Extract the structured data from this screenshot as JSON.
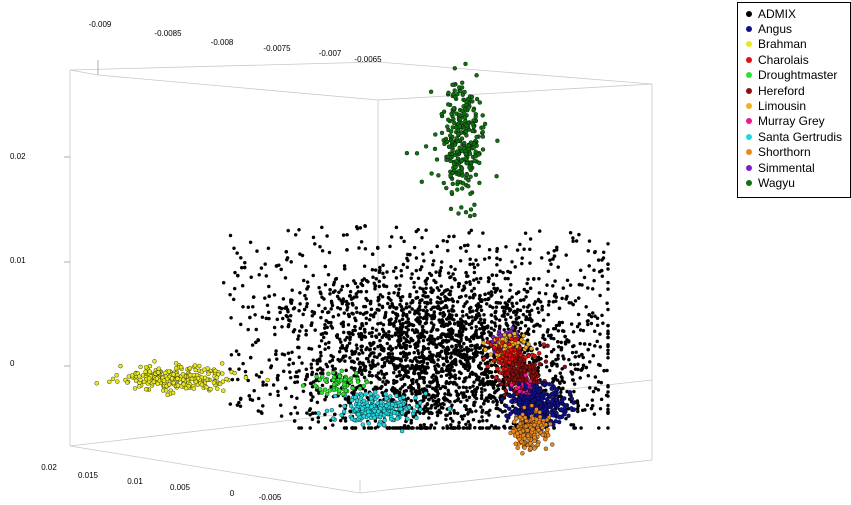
{
  "chart_data": {
    "type": "scatter",
    "title": "",
    "axes": {
      "x_ticks": [
        "-0.009",
        "-0.0085",
        "-0.008",
        "-0.0075",
        "-0.007",
        "-0.0065"
      ],
      "y_ticks": [
        "0.02",
        "0.01",
        "0"
      ],
      "z_ticks": [
        "0.02",
        "0.015",
        "0.01",
        "0.005",
        "0",
        "-0.005"
      ]
    },
    "legend": {
      "placement": "top-right",
      "entries": [
        {
          "name": "ADMIX",
          "color": "#000000"
        },
        {
          "name": "Angus",
          "color": "#10108a"
        },
        {
          "name": "Brahman",
          "color": "#e8e820"
        },
        {
          "name": "Charolais",
          "color": "#e01010"
        },
        {
          "name": "Droughtmaster",
          "color": "#30e030"
        },
        {
          "name": "Hereford",
          "color": "#8a1010"
        },
        {
          "name": "Limousin",
          "color": "#f0b020"
        },
        {
          "name": "Murray Grey",
          "color": "#f01890"
        },
        {
          "name": "Santa Gertrudis",
          "color": "#20d8e0"
        },
        {
          "name": "Shorthorn",
          "color": "#e88a20"
        },
        {
          "name": "Simmental",
          "color": "#8020c0"
        },
        {
          "name": "Wagyu",
          "color": "#107010"
        }
      ]
    },
    "series": [
      {
        "name": "ADMIX",
        "center": [
          -0.0072,
          0.0,
          0.005
        ],
        "count": 3200
      },
      {
        "name": "Brahman",
        "center": [
          -0.0091,
          -0.001,
          0.006
        ],
        "count": 260
      },
      {
        "name": "Santa Gertrudis",
        "center": [
          -0.0079,
          -0.0025,
          0.003
        ],
        "count": 240
      },
      {
        "name": "Droughtmaster",
        "center": [
          -0.0083,
          -0.0005,
          0.004
        ],
        "count": 60
      },
      {
        "name": "Wagyu",
        "center": [
          -0.0066,
          0.022,
          0.009
        ],
        "count": 300
      },
      {
        "name": "Simmental",
        "center": [
          -0.0065,
          0.003,
          -0.002
        ],
        "count": 90
      },
      {
        "name": "Limousin",
        "center": [
          -0.0064,
          0.002,
          -0.002
        ],
        "count": 110
      },
      {
        "name": "Charolais",
        "center": [
          -0.0063,
          0.001,
          -0.002
        ],
        "count": 130
      },
      {
        "name": "Hereford",
        "center": [
          -0.0062,
          0.0,
          -0.003
        ],
        "count": 150
      },
      {
        "name": "Murray Grey",
        "center": [
          -0.0061,
          -0.001,
          -0.003
        ],
        "count": 60
      },
      {
        "name": "Angus",
        "center": [
          -0.006,
          -0.0025,
          -0.004
        ],
        "count": 340
      },
      {
        "name": "Shorthorn",
        "center": [
          -0.0062,
          -0.0045,
          -0.004
        ],
        "count": 170
      }
    ]
  }
}
